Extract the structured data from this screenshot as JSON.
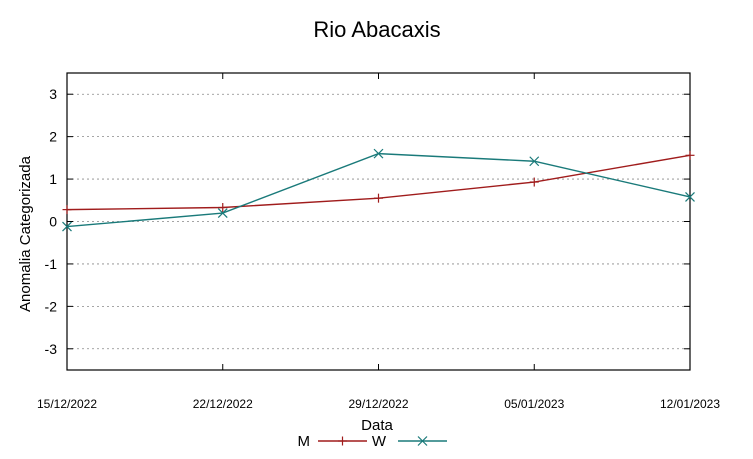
{
  "chart_data": {
    "type": "line",
    "title": "Rio Abacaxis",
    "xlabel": "Data",
    "ylabel": "Anomalia Categorizada",
    "x": [
      "15/12/2022",
      "22/12/2022",
      "29/12/2022",
      "05/01/2023",
      "12/01/2023"
    ],
    "ylim": [
      -3.5,
      3.5
    ],
    "yticks": [
      -3,
      -2,
      -1,
      0,
      1,
      2,
      3
    ],
    "grid": true,
    "legend_position": "bottom-center",
    "series": [
      {
        "name": "M",
        "values": [
          0.28,
          0.33,
          0.55,
          0.93,
          1.56
        ],
        "color": "#a01c1c",
        "marker": "plus"
      },
      {
        "name": "W",
        "values": [
          -0.12,
          0.2,
          1.6,
          1.42,
          0.58
        ],
        "color": "#1a7a7a",
        "marker": "cross"
      }
    ]
  }
}
